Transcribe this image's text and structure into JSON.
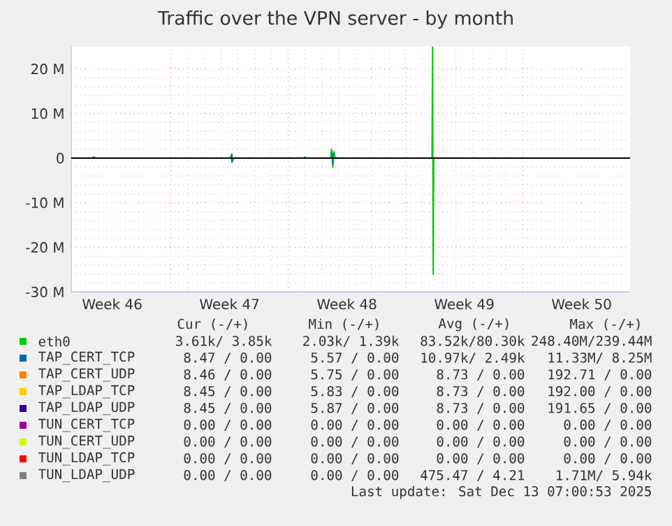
{
  "chart_data": {
    "type": "line",
    "title": "Traffic over the VPN server - by month",
    "xlim": [
      "2025-11-11T01:22",
      "2025-12-14T09:23"
    ],
    "xticks": [
      {
        "value": "2025-11-13T12:00",
        "label": "Week 46"
      },
      {
        "value": "2025-11-17",
        "label": null
      },
      {
        "value": "2025-11-20T12:00",
        "label": "Week 47"
      },
      {
        "value": "2025-11-24",
        "label": null
      },
      {
        "value": "2025-11-27T12:00",
        "label": "Week 48"
      },
      {
        "value": "2025-12-01",
        "label": null
      },
      {
        "value": "2025-12-04T12:00",
        "label": "Week 49"
      },
      {
        "value": "2025-12-08",
        "label": null
      },
      {
        "value": "2025-12-11T12:00",
        "label": "Week 50"
      }
    ],
    "ylim": [
      -30,
      25
    ],
    "yticks": [
      {
        "value": -30,
        "label": "-30 M"
      },
      {
        "value": -20,
        "label": "-20 M"
      },
      {
        "value": -10,
        "label": "-10 M"
      },
      {
        "value": 0,
        "label": "0"
      },
      {
        "value": 10,
        "label": "10 M"
      },
      {
        "value": 20,
        "label": "20 M"
      }
    ],
    "grid": true,
    "legend": "bottom",
    "ref_lines": [
      {
        "axis": "y",
        "value": 0,
        "color": "#000000"
      }
    ],
    "series": [
      {
        "name": "eth0",
        "color": "#00cc00",
        "x": [
          "2025-11-11T01:22",
          "2025-11-12T07:26",
          "2025-11-12T09:27",
          "2025-11-12T11:28",
          "2025-11-20T12:50",
          "2025-11-20T15:22",
          "2025-11-20T15:22",
          "2025-11-20T17:53",
          "2025-11-24T21:50",
          "2025-11-24T23:31",
          "2025-11-25T01:12",
          "2025-11-26T12:29",
          "2025-11-26T14:10",
          "2025-11-26T15:50",
          "2025-11-26T17:31",
          "2025-11-26T19:12",
          "2025-12-02T13:48",
          "2025-12-02T14:38",
          "2025-12-02T15:29",
          "2025-12-02T16:19",
          "2025-12-14T09:23"
        ],
        "values": [
          0,
          0,
          0.3,
          0,
          0,
          1,
          -1,
          0,
          0,
          0.3,
          0,
          0,
          2,
          -2,
          1.5,
          0,
          0,
          25,
          -26,
          0,
          0
        ]
      },
      {
        "name": "TAP_CERT_TCP",
        "color": "#0066b3",
        "x": [
          "2025-11-20T15:22",
          "2025-11-20T15:22",
          "2025-11-23T00:00",
          "2025-11-26T15:00",
          "2025-11-26T15:50"
        ],
        "values": [
          0.7,
          -0.7,
          null,
          1.2,
          -1.2
        ]
      },
      {
        "name": "TAP_CERT_UDP",
        "color": "#ff8000"
      },
      {
        "name": "TAP_LDAP_TCP",
        "color": "#ffcc00"
      },
      {
        "name": "TAP_LDAP_UDP",
        "color": "#330099"
      },
      {
        "name": "TUN_CERT_TCP",
        "color": "#990099"
      },
      {
        "name": "TUN_CERT_UDP",
        "color": "#ccff00"
      },
      {
        "name": "TUN_LDAP_TCP",
        "color": "#ff0000"
      },
      {
        "name": "TUN_LDAP_UDP",
        "color": "#808080"
      }
    ],
    "annotations": [
      "Cur (-/+)",
      "Min (-/+)",
      "Avg (-/+)",
      "Max (-/+)",
      "3.61k/ 3.85k",
      "2.03k/ 1.39k",
      "83.52k/80.30k",
      "248.40M/239.44M",
      "8.47 / 0.00",
      "5.57 / 0.00",
      "10.97k/ 2.49k",
      "11.33M/ 8.25M",
      "8.46 / 0.00",
      "5.75 / 0.00",
      "8.73 / 0.00",
      "192.71 / 0.00",
      "8.45 / 0.00",
      "5.83 / 0.00",
      "8.73 / 0.00",
      "192.00 / 0.00",
      "8.45 / 0.00",
      "5.87 / 0.00",
      "8.73 / 0.00",
      "191.65 / 0.00",
      "0.00 / 0.00",
      "0.00 / 0.00",
      "0.00 / 0.00",
      "0.00 / 0.00",
      "0.00 / 0.00",
      "0.00 / 0.00",
      "0.00 / 0.00",
      "0.00 / 0.00",
      "0.00 / 0.00",
      "0.00 / 0.00",
      "0.00 / 0.00",
      "0.00 / 0.00",
      "0.00 / 0.00",
      "0.00 / 0.00",
      "475.47 / 4.21",
      "1.71M/ 5.94k",
      "Last update:  Sat Dec 13 07:00:53 2025"
    ]
  }
}
